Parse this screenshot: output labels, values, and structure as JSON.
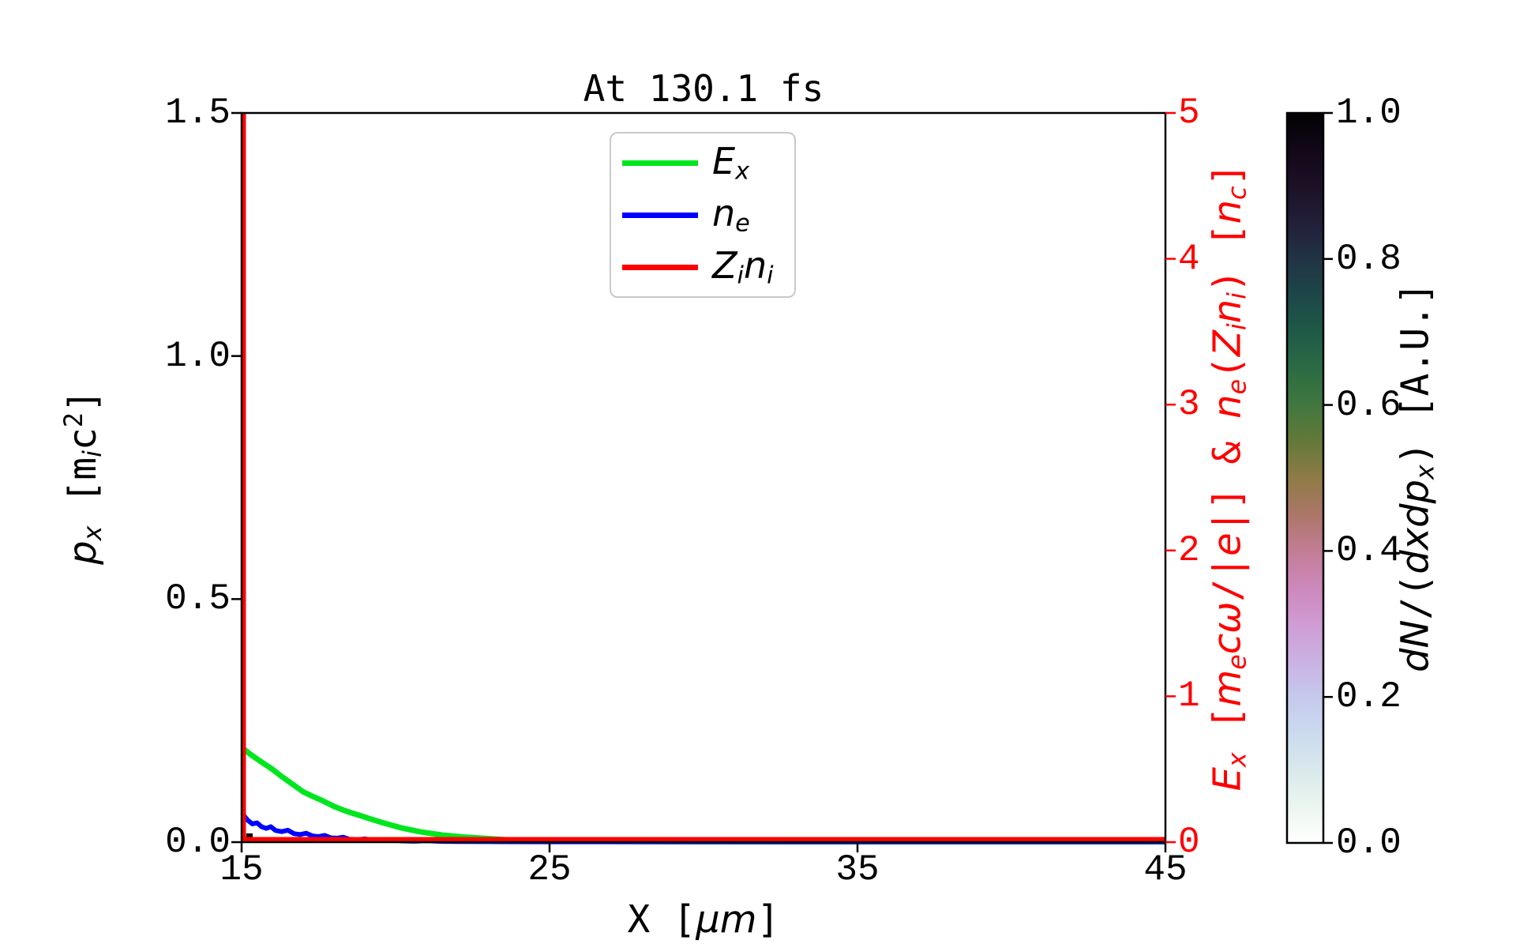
{
  "title": "At 130.1 fs",
  "colors": {
    "ex_green": "#00e61e",
    "ne_blue": "#0000ff",
    "zini_red": "#ff0000",
    "axis_black": "#000000",
    "right_axis_red": "#ff0000",
    "legend_border": "#c9c9c9",
    "background": "#ffffff"
  },
  "axes": {
    "x": {
      "label_plain": "X [μm]",
      "label_rich": [
        {
          "t": "X [",
          "m": true
        },
        {
          "t": "μm",
          "i": true
        },
        {
          "t": "]",
          "m": true
        }
      ],
      "range": [
        15,
        45
      ],
      "ticks": [
        {
          "v": 15,
          "label": "15"
        },
        {
          "v": 25,
          "label": "25"
        },
        {
          "v": 35,
          "label": "35"
        },
        {
          "v": 45,
          "label": "45"
        }
      ]
    },
    "left": {
      "label_plain": "p_x [m_i c^2]",
      "label_rich": [
        {
          "t": "p",
          "i": true
        },
        {
          "t": "x",
          "i": true,
          "sub": true
        },
        {
          "t": " [",
          "m": true
        },
        {
          "t": "m",
          "m": true
        },
        {
          "t": "i",
          "i": true,
          "sub": true
        },
        {
          "t": "c",
          "m": true
        },
        {
          "t": "2",
          "m": true,
          "sup": true
        },
        {
          "t": "]",
          "m": true
        }
      ],
      "range": [
        0,
        1.5
      ],
      "ticks": [
        {
          "v": 0,
          "label": "0.0"
        },
        {
          "v": 0.5,
          "label": "0.5"
        },
        {
          "v": 1.0,
          "label": "1.0"
        },
        {
          "v": 1.5,
          "label": "1.5"
        }
      ]
    },
    "right": {
      "label_plain": "E_x [m_e cω/|e|] & n_e(Z_i n_i) [n_c]",
      "label_rich": [
        {
          "t": "E",
          "i": true
        },
        {
          "t": "x",
          "i": true,
          "sub": true
        },
        {
          "t": " [",
          "m": true
        },
        {
          "t": "m",
          "i": true
        },
        {
          "t": "e",
          "i": true,
          "sub": true
        },
        {
          "t": "c",
          "i": true
        },
        {
          "t": "ω",
          "i": true
        },
        {
          "t": "/|",
          "m": true
        },
        {
          "t": "e",
          "i": true
        },
        {
          "t": "|] & ",
          "m": true
        },
        {
          "t": "n",
          "i": true
        },
        {
          "t": "e",
          "i": true,
          "sub": true
        },
        {
          "t": "(",
          "m": true
        },
        {
          "t": "Z",
          "i": true
        },
        {
          "t": "i",
          "i": true,
          "sub": true
        },
        {
          "t": "n",
          "i": true
        },
        {
          "t": "i",
          "i": true,
          "sub": true
        },
        {
          "t": ") [",
          "m": true
        },
        {
          "t": "n",
          "i": true
        },
        {
          "t": "c",
          "i": true,
          "sub": true
        },
        {
          "t": "]",
          "m": true
        }
      ],
      "range": [
        0,
        5
      ],
      "ticks": [
        {
          "v": 0,
          "label": "0"
        },
        {
          "v": 1,
          "label": "1"
        },
        {
          "v": 2,
          "label": "2"
        },
        {
          "v": 3,
          "label": "3"
        },
        {
          "v": 4,
          "label": "4"
        },
        {
          "v": 5,
          "label": "5"
        }
      ]
    }
  },
  "legend": {
    "items": [
      {
        "name": "Ex",
        "color_key": "ex_green",
        "label_plain": "E_x",
        "label_rich": [
          {
            "t": "E",
            "i": true
          },
          {
            "t": "x",
            "i": true,
            "sub": true
          }
        ]
      },
      {
        "name": "ne",
        "color_key": "ne_blue",
        "label_plain": "n_e",
        "label_rich": [
          {
            "t": "n",
            "i": true
          },
          {
            "t": "e",
            "i": true,
            "sub": true
          }
        ]
      },
      {
        "name": "Zini",
        "color_key": "zini_red",
        "label_plain": "Z_i n_i",
        "label_rich": [
          {
            "t": "Z",
            "i": true
          },
          {
            "t": "i",
            "i": true,
            "sub": true
          },
          {
            "t": "n",
            "i": true
          },
          {
            "t": "i",
            "i": true,
            "sub": true
          }
        ]
      }
    ]
  },
  "colorbar": {
    "label_plain": "dN/(dxdp_x) [A.U.]",
    "label_rich": [
      {
        "t": "d",
        "i": true
      },
      {
        "t": "N",
        "i": true
      },
      {
        "t": "/(",
        "m": true
      },
      {
        "t": "d",
        "i": true
      },
      {
        "t": "x",
        "i": true
      },
      {
        "t": "d",
        "i": true
      },
      {
        "t": "p",
        "i": true
      },
      {
        "t": "x",
        "i": true,
        "sub": true
      },
      {
        "t": ") [A.U.]",
        "m": true
      }
    ],
    "range": [
      0,
      1
    ],
    "ticks": [
      {
        "v": 0.0,
        "label": "0.0"
      },
      {
        "v": 0.2,
        "label": "0.2"
      },
      {
        "v": 0.4,
        "label": "0.4"
      },
      {
        "v": 0.6,
        "label": "0.6"
      },
      {
        "v": 0.8,
        "label": "0.8"
      },
      {
        "v": 1.0,
        "label": "1.0"
      }
    ],
    "colormap_name": "cubehelix reversed (white→blue→pink→olive→green→teal→black)",
    "colormap": [
      [
        0.0,
        "#fffffd"
      ],
      [
        0.05,
        "#eaf5ee"
      ],
      [
        0.1,
        "#d9e9ec"
      ],
      [
        0.15,
        "#cbdaee"
      ],
      [
        0.2,
        "#c6c9ed"
      ],
      [
        0.25,
        "#cbb1e4"
      ],
      [
        0.3,
        "#cf9cd3"
      ],
      [
        0.35,
        "#cd88bb"
      ],
      [
        0.4,
        "#c17d95"
      ],
      [
        0.45,
        "#ac7668"
      ],
      [
        0.5,
        "#8f7b46"
      ],
      [
        0.55,
        "#64793a"
      ],
      [
        0.6,
        "#41773f"
      ],
      [
        0.65,
        "#2b6b44"
      ],
      [
        0.7,
        "#1f5a47"
      ],
      [
        0.75,
        "#1d4748"
      ],
      [
        0.8,
        "#213345"
      ],
      [
        0.85,
        "#221f39"
      ],
      [
        0.9,
        "#1c1126"
      ],
      [
        0.95,
        "#120818"
      ],
      [
        1.0,
        "#020103"
      ]
    ]
  },
  "chart_data": {
    "type": "line",
    "title": "At 130.1 fs",
    "x_axis": {
      "label": "X [μm]",
      "range": [
        15,
        45
      ]
    },
    "left_y_axis": {
      "label": "p_x [m_i c^2]",
      "range": [
        0,
        1.5
      ]
    },
    "right_y_axis": {
      "label": "E_x [m_e cω/|e|] & n_e(Z_i n_i) [n_c]",
      "range": [
        0,
        5
      ]
    },
    "grid": false,
    "legend_position": "upper left-center inside axes",
    "series": [
      {
        "name": "E_x",
        "axis": "right",
        "color": "#00e61e",
        "linewidth": 7,
        "x": [
          15.0,
          15.3,
          15.6,
          16.0,
          16.3,
          16.6,
          17.0,
          17.3,
          17.6,
          18.0,
          18.3,
          18.6,
          18.9,
          19.2,
          19.6,
          20.2,
          20.8,
          21.5,
          22.2,
          22.8,
          23.5,
          24.5,
          26.0,
          30.0,
          45.0
        ],
        "y": [
          0.65,
          0.6,
          0.556,
          0.5,
          0.45,
          0.405,
          0.345,
          0.315,
          0.287,
          0.245,
          0.22,
          0.198,
          0.179,
          0.158,
          0.132,
          0.097,
          0.071,
          0.049,
          0.035,
          0.027,
          0.018,
          0.01,
          0.006,
          0.003,
          0.002
        ]
      },
      {
        "name": "n_e",
        "axis": "right",
        "color": "#0000ff",
        "linewidth": 6,
        "x": [
          15.0,
          15.1,
          15.2,
          15.35,
          15.5,
          15.65,
          15.8,
          15.95,
          16.1,
          16.3,
          16.5,
          16.7,
          16.9,
          17.1,
          17.3,
          17.5,
          17.7,
          17.9,
          18.1,
          18.3,
          18.5,
          18.8,
          19.0,
          19.3,
          19.6,
          19.9,
          20.2,
          20.6,
          21.0,
          21.5,
          22.0,
          23.0,
          25.0,
          45.0
        ],
        "y": [
          0.21,
          0.175,
          0.15,
          0.125,
          0.132,
          0.105,
          0.094,
          0.106,
          0.08,
          0.072,
          0.082,
          0.058,
          0.052,
          0.061,
          0.043,
          0.038,
          0.046,
          0.03,
          0.027,
          0.034,
          0.02,
          0.018,
          0.023,
          0.013,
          0.011,
          0.015,
          0.008,
          0.006,
          0.009,
          0.005,
          0.004,
          0.003,
          0.002,
          0.002
        ]
      },
      {
        "name": "Z_i n_i",
        "axis": "right",
        "color": "#ff0000",
        "linewidth": 5.5,
        "note": "delta-like spike at x≈15.07 exceeding axis top (clipped at 5); ~0 elsewhere",
        "x": [
          45,
          15.07,
          15.07
        ],
        "y": [
          0.02,
          0.02,
          5.6
        ]
      }
    ],
    "distribution": {
      "name": "dN/(dxdp_x)",
      "units": "A.U.",
      "axis": "left",
      "cells": [
        {
          "x0": 15.15,
          "x1": 15.36,
          "px0": 0.004,
          "px1": 0.018,
          "value": 1.0
        }
      ]
    }
  }
}
